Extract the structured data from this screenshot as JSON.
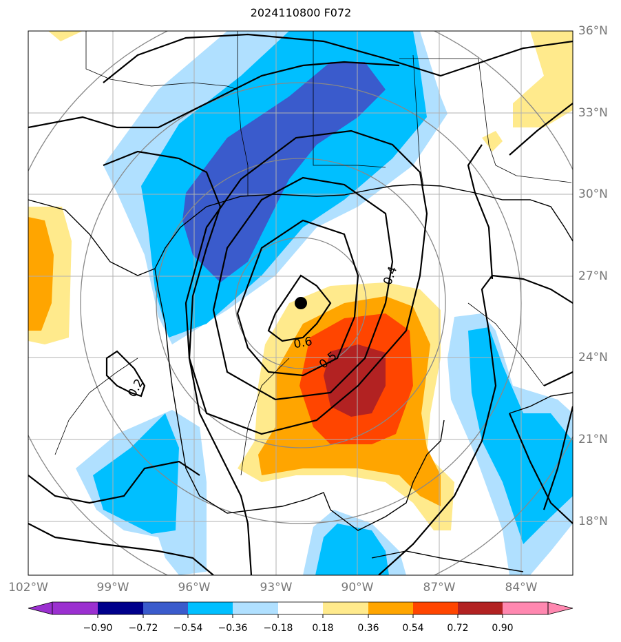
{
  "title": "2024110800 F072",
  "lon_labels": [
    "102°W",
    "99°W",
    "96°W",
    "93°W",
    "90°W",
    "87°W",
    "84°W"
  ],
  "lat_labels": [
    "36°N",
    "33°N",
    "30°N",
    "27°N",
    "24°N",
    "21°N",
    "18°N"
  ],
  "contour_labels": [
    "0.6",
    "0.5",
    "0.4",
    "0.2"
  ],
  "colorbar": {
    "ticks": [
      "−0.90",
      "−0.72",
      "−0.54",
      "−0.36",
      "−0.18",
      "0.18",
      "0.36",
      "0.54",
      "0.72",
      "0.90"
    ],
    "colors": [
      "#9b30d0",
      "#00008b",
      "#3a5bcc",
      "#00bfff",
      "#b0e0ff",
      "#ffffff",
      "#ffea8c",
      "#ffa500",
      "#ff4500",
      "#b22222",
      "#ff88b0"
    ]
  },
  "marker": "storm-center-dot"
}
